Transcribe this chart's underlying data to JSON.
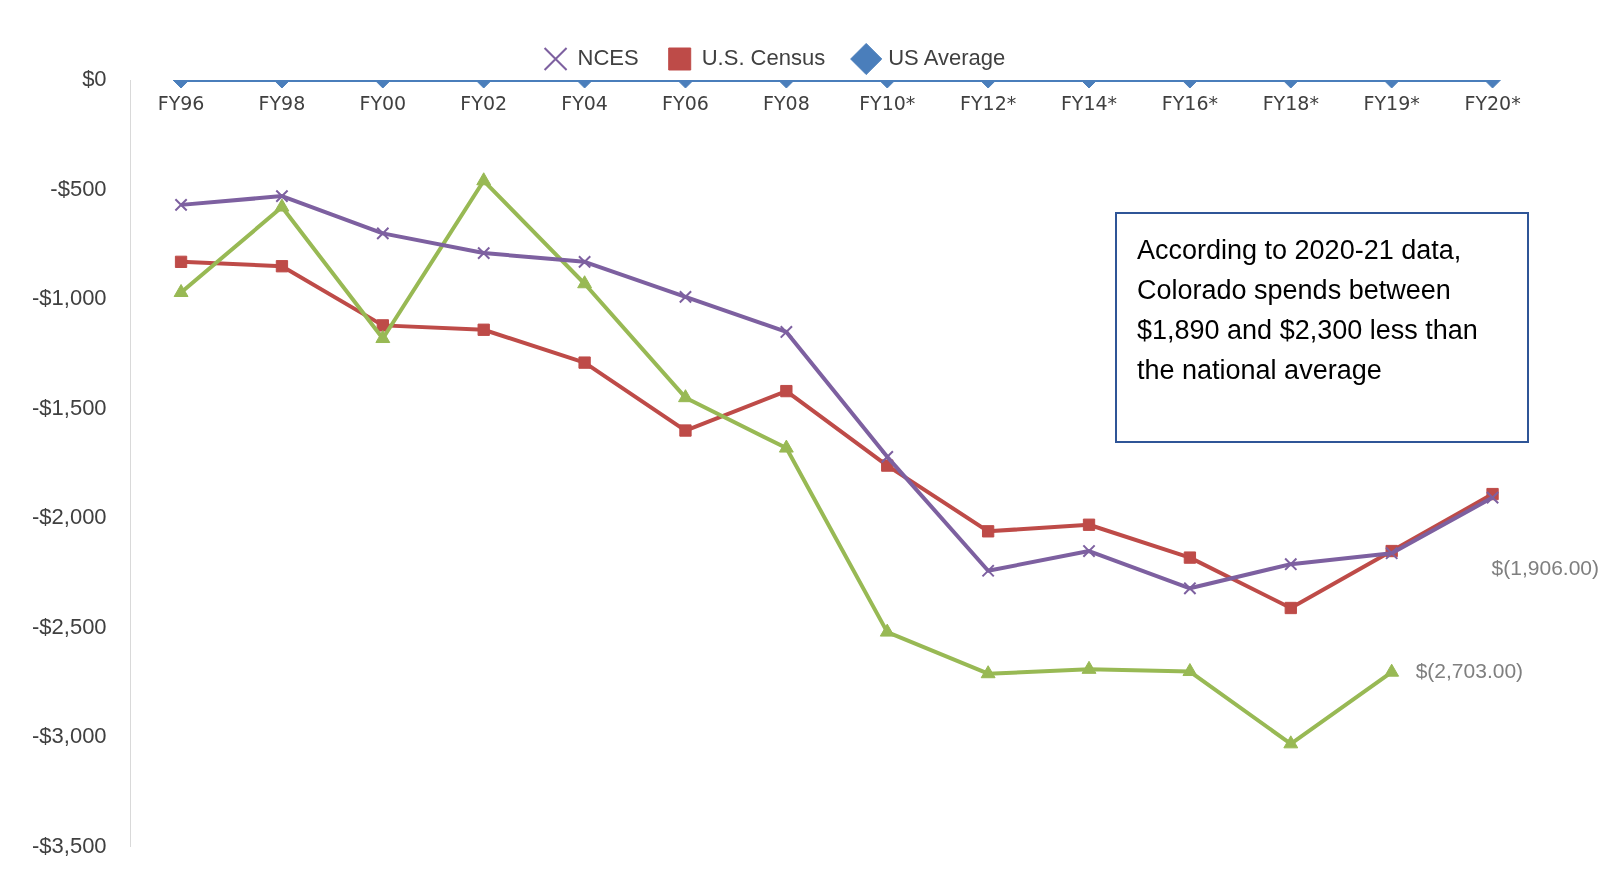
{
  "chart_data": {
    "type": "line",
    "categories": [
      "FY96",
      "FY98",
      "FY00",
      "FY02",
      "FY04",
      "FY06",
      "FY08",
      "FY10*",
      "FY12*",
      "FY14*",
      "FY16*",
      "FY18*",
      "FY19*",
      "FY20*"
    ],
    "series": [
      {
        "name": "US Average",
        "color": "#4a7ebb",
        "marker": "diamond",
        "values": [
          0,
          0,
          0,
          0,
          0,
          0,
          0,
          0,
          0,
          0,
          0,
          0,
          0,
          0
        ]
      },
      {
        "name": "U.S. Census",
        "color": "#be4b48",
        "marker": "square",
        "values": [
          -830,
          -850,
          -1120,
          -1140,
          -1290,
          -1600,
          -1420,
          -1760,
          -2060,
          -2030,
          -2180,
          -2410,
          -2150,
          -1890
        ]
      },
      {
        "color": "#98b954",
        "marker": "triangle",
        "values": [
          -970,
          -580,
          -1180,
          -460,
          -930,
          -1450,
          -1680,
          -2520,
          -2710,
          -2690,
          -2700,
          -3030,
          -2703,
          null
        ],
        "value_labels": [
          null,
          null,
          null,
          null,
          null,
          null,
          null,
          null,
          null,
          null,
          null,
          null,
          "$(2,703.00)",
          null
        ]
      },
      {
        "name": "NCES",
        "color": "#7d60a0",
        "marker": "cross",
        "values": [
          -570,
          -530,
          -700,
          -790,
          -830,
          -990,
          -1150,
          -1720,
          -2240,
          -2150,
          -2320,
          -2210,
          -2160,
          -1906
        ],
        "value_labels": [
          null,
          null,
          null,
          null,
          null,
          null,
          null,
          null,
          null,
          null,
          null,
          null,
          null,
          "$(1,906.00)"
        ]
      }
    ],
    "ylim": [
      -3500,
      0
    ],
    "yticks": [
      {
        "value": 0,
        "label": "$0"
      },
      {
        "value": -500,
        "label": "-$500"
      },
      {
        "value": -1000,
        "label": "-$1,000"
      },
      {
        "value": -1500,
        "label": "-$1,500"
      },
      {
        "value": -2000,
        "label": "-$2,000"
      },
      {
        "value": -2500,
        "label": "-$2,500"
      },
      {
        "value": -3000,
        "label": "-$3,000"
      },
      {
        "value": -3500,
        "label": "-$3,500"
      }
    ],
    "grid": false,
    "legend": "top",
    "annotations": [
      "According to 2020-21 data, Colorado spends between $1,890 and $2,300 less than the national average"
    ]
  }
}
